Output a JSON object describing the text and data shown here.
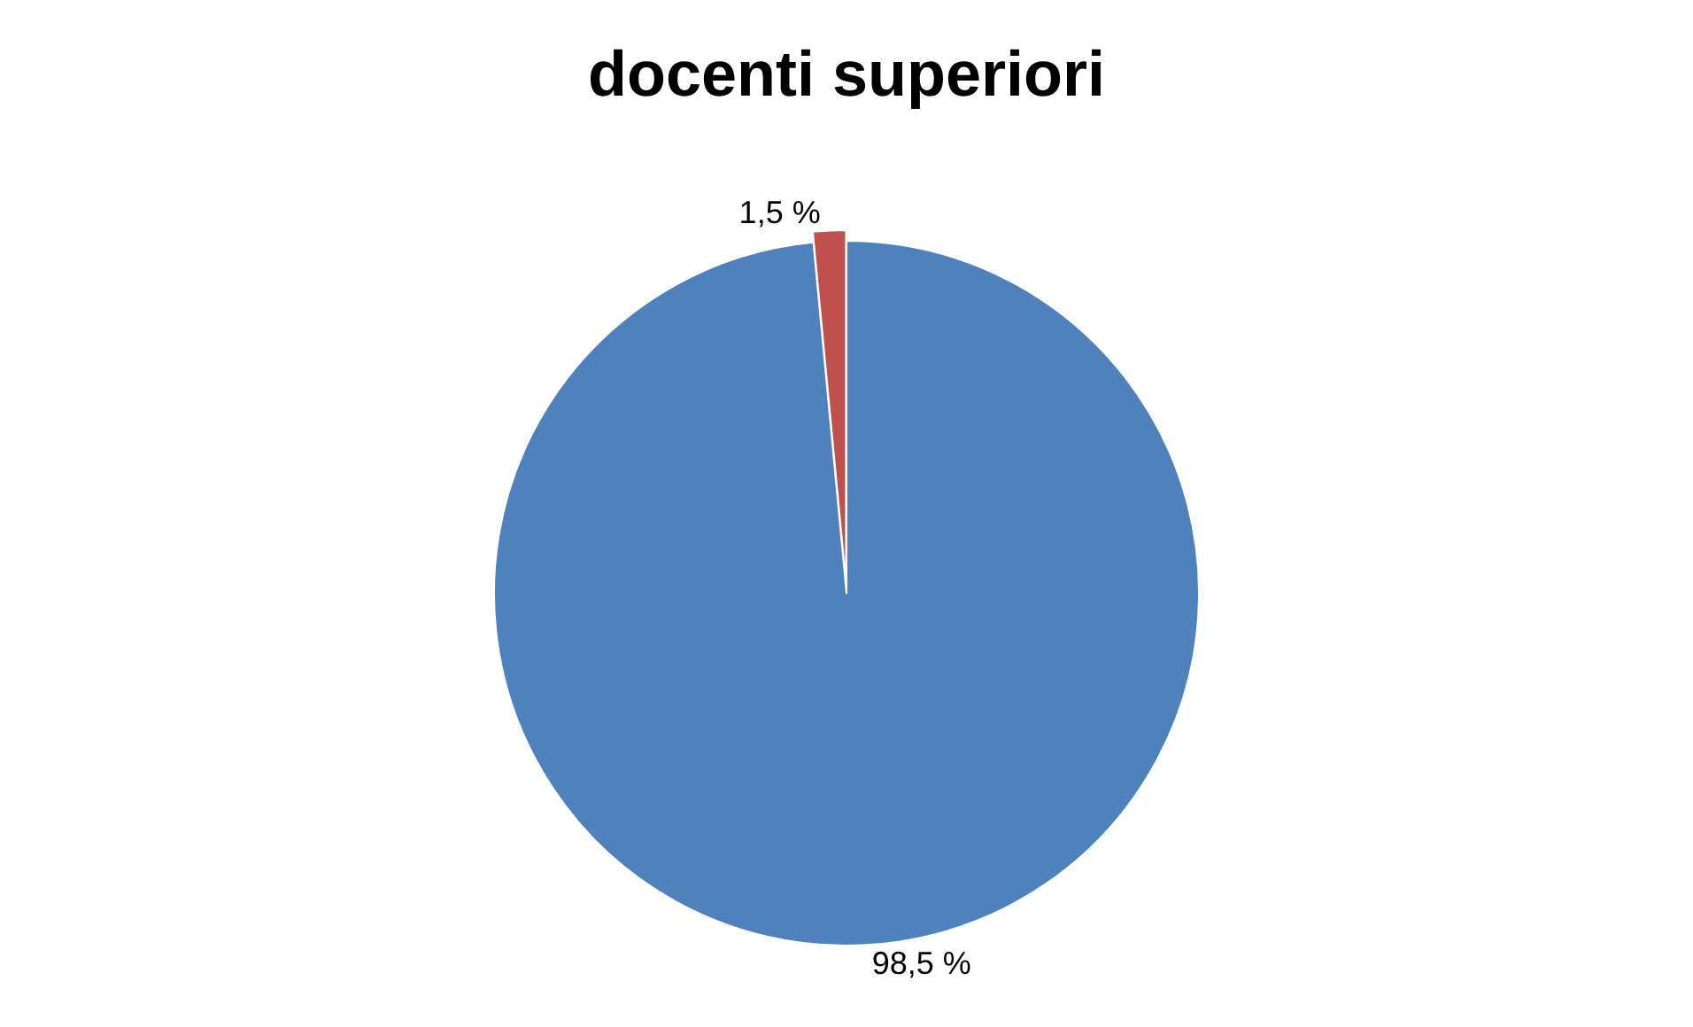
{
  "chart_data": {
    "type": "pie",
    "title": "docenti superiori",
    "categories": [
      null,
      null
    ],
    "values": [
      98.5,
      1.5
    ],
    "colors": [
      "#4f81bd",
      "#c0504d"
    ],
    "value_labels": [
      "98,5 %",
      "1,5 %"
    ],
    "legend": false
  }
}
